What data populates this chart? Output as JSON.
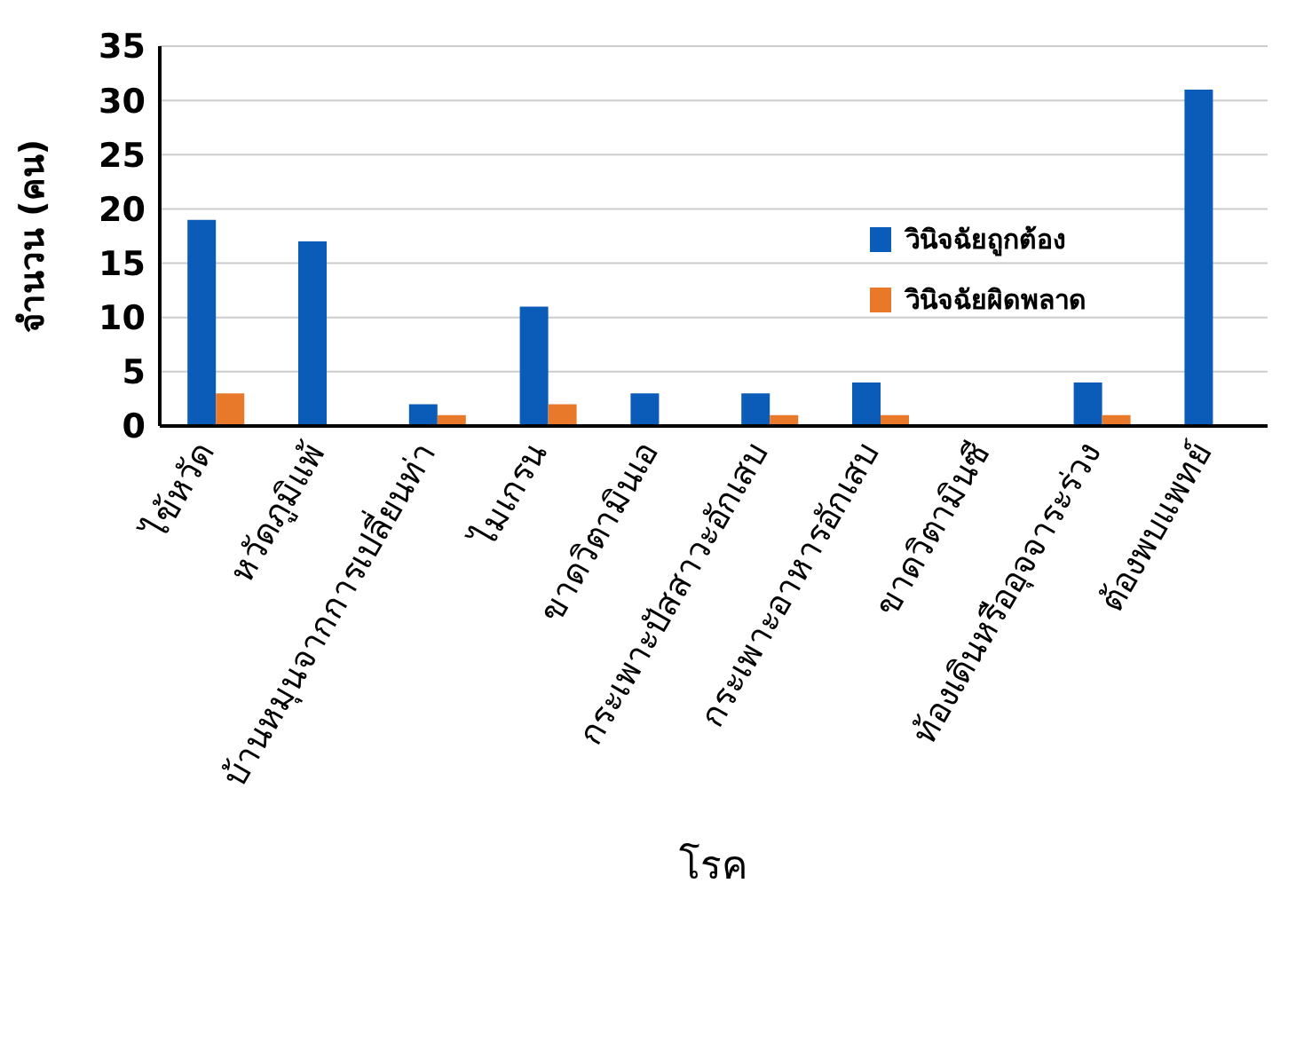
{
  "chart_data": {
    "type": "bar",
    "xlabel": "โรค",
    "ylabel": "จำนวน (คน)",
    "categories": [
      "ไข้หวัด",
      "หวัดภูมิแพ้",
      "บ้านหมุนจากการเปลี่ยนท่า",
      "ไมเกรน",
      "ขาดวิตามินเอ",
      "กระเพาะปัสสาวะอักเสบ",
      "กระเพาะอาหารอักเสบ",
      "ขาดวิตามินซี",
      "ท้องเดินหรืออุจจาระร่วง",
      "ต้องพบแพทย์"
    ],
    "series": [
      {
        "name": "วินิจฉัยถูกต้อง",
        "color": "#0a5cb8",
        "values": [
          19,
          17,
          2,
          11,
          3,
          3,
          4,
          0,
          4,
          31
        ]
      },
      {
        "name": "วินิจฉัยผิดพลาด",
        "color": "#e8792b",
        "values": [
          3,
          0,
          1,
          2,
          0,
          1,
          1,
          0,
          1,
          0
        ]
      }
    ],
    "ylim": [
      0,
      35
    ],
    "yticks": [
      0,
      5,
      10,
      15,
      20,
      25,
      30,
      35
    ],
    "grid": "y",
    "legend": "right"
  }
}
